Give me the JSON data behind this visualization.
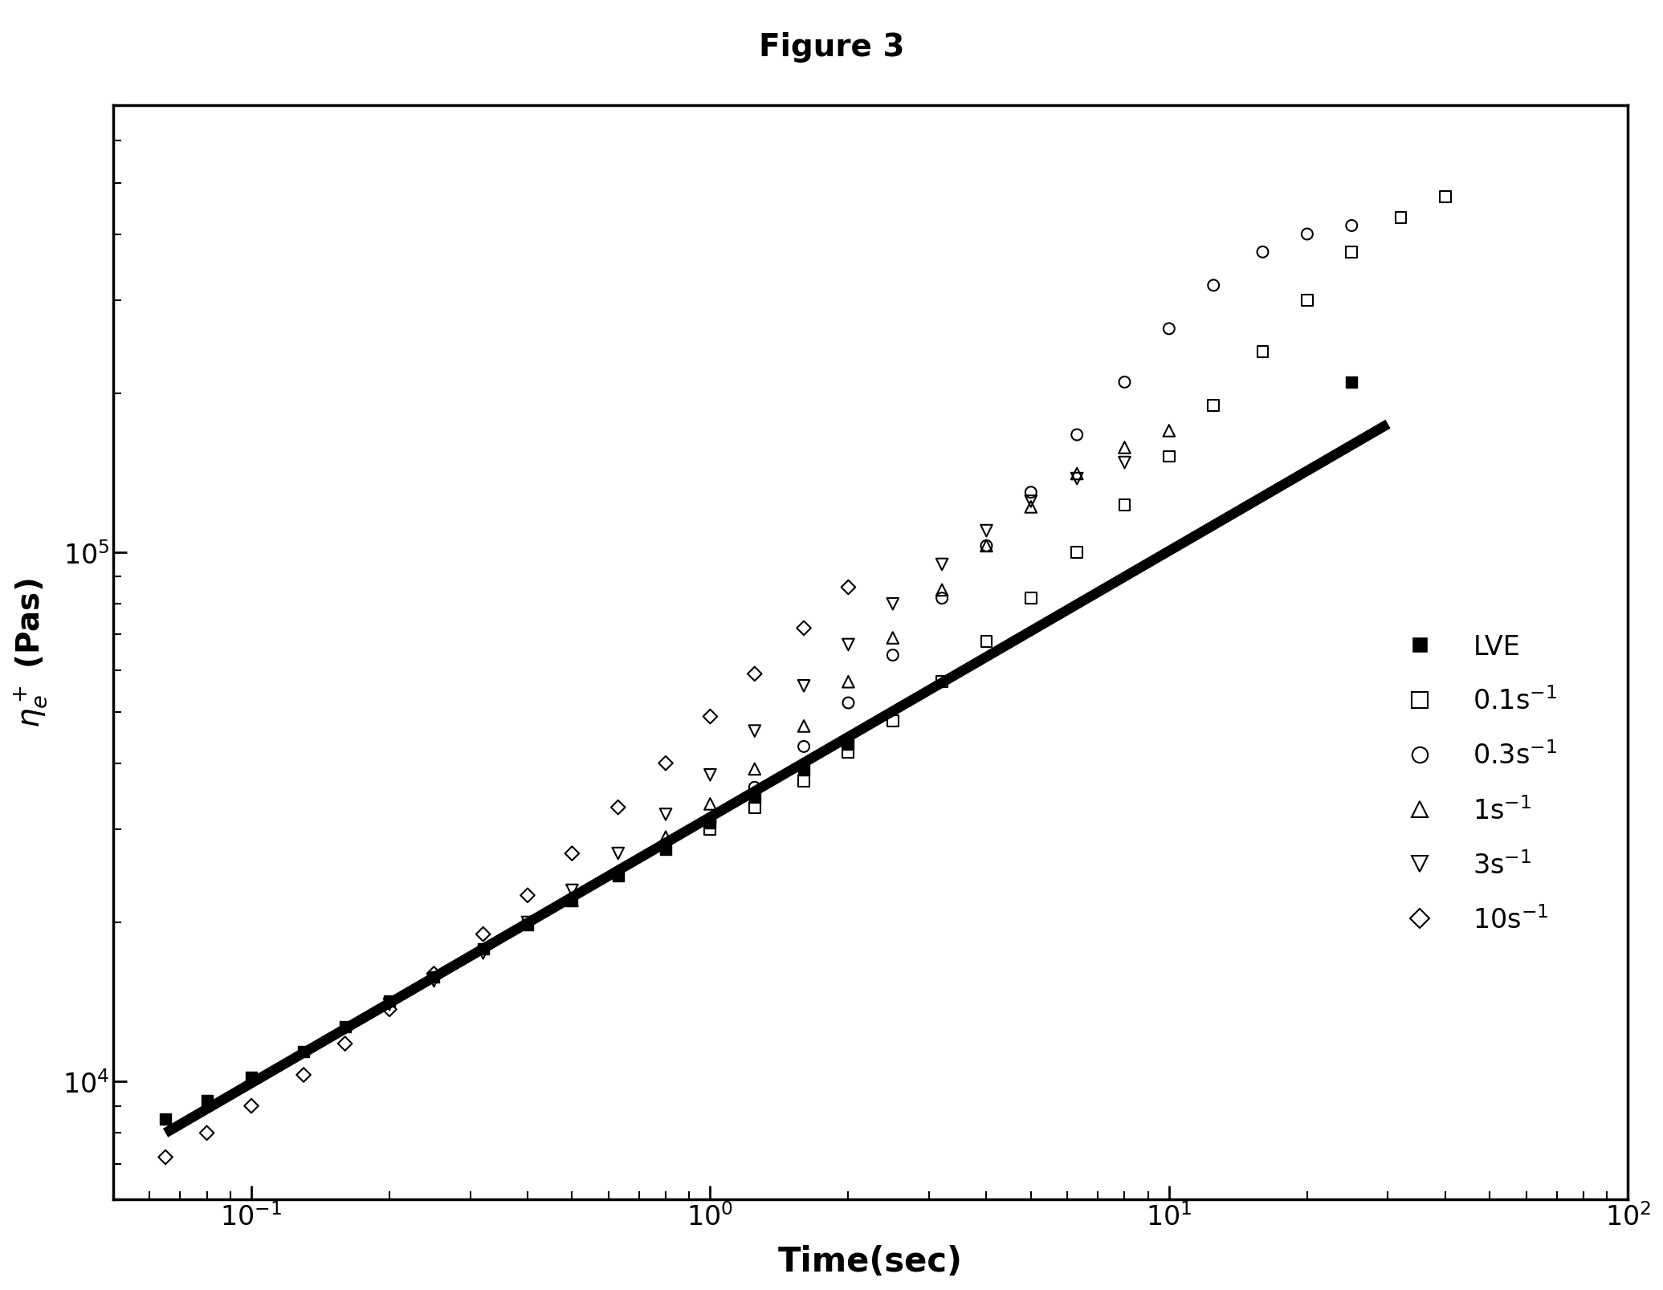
{
  "title": "Figure 3",
  "xlabel": "Time(sec)",
  "ylabel": "$\\eta_e^+$ (Pas)",
  "xlim": [
    0.05,
    100
  ],
  "ylim": [
    6000,
    700000
  ],
  "background_color": "#ffffff",
  "lve_line": {
    "x": [
      0.065,
      30
    ],
    "y": [
      8000,
      175000
    ],
    "color": "#000000",
    "linewidth": 9
  },
  "series": [
    {
      "label": "LVE",
      "marker": "s",
      "filled": true,
      "x": [
        0.065,
        0.08,
        0.1,
        0.13,
        0.16,
        0.2,
        0.25,
        0.32,
        0.4,
        0.5,
        0.63,
        0.8,
        1.0,
        1.25,
        1.6,
        2.0,
        25.0
      ],
      "y": [
        8500,
        9200,
        10200,
        11400,
        12700,
        14200,
        15800,
        17800,
        19800,
        22000,
        24500,
        27500,
        30800,
        34500,
        38800,
        43500,
        210000
      ]
    },
    {
      "label": "0.1s$^{-1}$",
      "marker": "s",
      "filled": false,
      "x": [
        1.0,
        1.25,
        1.6,
        2.0,
        2.5,
        3.2,
        4.0,
        5.0,
        6.3,
        8.0,
        10.0,
        12.5,
        16.0,
        20.0,
        25.0,
        32.0,
        40.0
      ],
      "y": [
        30000,
        33000,
        37000,
        42000,
        48000,
        57000,
        68000,
        82000,
        100000,
        123000,
        152000,
        190000,
        240000,
        300000,
        370000,
        430000,
        470000
      ]
    },
    {
      "label": "0.3s$^{-1}$",
      "marker": "o",
      "filled": false,
      "x": [
        1.0,
        1.25,
        1.6,
        2.0,
        2.5,
        3.2,
        4.0,
        5.0,
        6.3,
        8.0,
        10.0,
        12.5,
        16.0,
        20.0,
        25.0
      ],
      "y": [
        31000,
        36000,
        43000,
        52000,
        64000,
        82000,
        103000,
        130000,
        167000,
        210000,
        265000,
        320000,
        370000,
        400000,
        415000
      ]
    },
    {
      "label": "1s$^{-1}$",
      "marker": "^",
      "filled": false,
      "x": [
        0.5,
        0.63,
        0.8,
        1.0,
        1.25,
        1.6,
        2.0,
        2.5,
        3.2,
        4.0,
        5.0,
        6.3,
        8.0,
        10.0
      ],
      "y": [
        22000,
        25000,
        29000,
        33500,
        39000,
        47000,
        57000,
        69000,
        85000,
        103000,
        122000,
        141000,
        158000,
        170000
      ]
    },
    {
      "label": "3s$^{-1}$",
      "marker": "v",
      "filled": false,
      "x": [
        0.2,
        0.25,
        0.32,
        0.4,
        0.5,
        0.63,
        0.8,
        1.0,
        1.25,
        1.6,
        2.0,
        2.5,
        3.2,
        4.0,
        5.0,
        6.3,
        8.0
      ],
      "y": [
        14000,
        15500,
        17500,
        20000,
        23000,
        27000,
        32000,
        38000,
        46000,
        56000,
        67000,
        80000,
        95000,
        110000,
        125000,
        138000,
        148000
      ]
    },
    {
      "label": "10s$^{-1}$",
      "marker": "D",
      "filled": false,
      "x": [
        0.065,
        0.08,
        0.1,
        0.13,
        0.16,
        0.2,
        0.25,
        0.32,
        0.4,
        0.5,
        0.63,
        0.8,
        1.0,
        1.25,
        1.6,
        2.0
      ],
      "y": [
        7200,
        8000,
        9000,
        10300,
        11800,
        13700,
        16000,
        19000,
        22500,
        27000,
        33000,
        40000,
        49000,
        59000,
        72000,
        86000
      ]
    }
  ]
}
